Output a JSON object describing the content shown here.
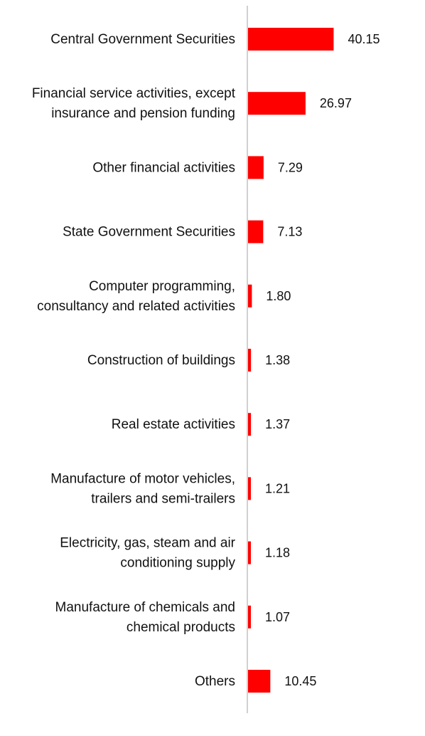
{
  "chart_data": {
    "type": "bar",
    "orientation": "horizontal",
    "title": "",
    "xlabel": "",
    "ylabel": "",
    "grid": false,
    "legend": "none",
    "bar_color": "#ff0000",
    "axis_color": "#d0d0d0",
    "categories": [
      [
        "Central Government Securities"
      ],
      [
        "Financial service activities, except",
        "insurance and pension funding"
      ],
      [
        "Other financial activities"
      ],
      [
        "State Government Securities"
      ],
      [
        "Computer programming,",
        "consultancy and related activities"
      ],
      [
        "Construction of buildings"
      ],
      [
        "Real estate activities"
      ],
      [
        "Manufacture of motor vehicles,",
        "trailers and semi-trailers"
      ],
      [
        "Electricity, gas, steam and air",
        "conditioning supply"
      ],
      [
        "Manufacture of chemicals and",
        "chemical products"
      ],
      [
        "Others"
      ]
    ],
    "values": [
      40.15,
      26.97,
      7.29,
      7.13,
      1.8,
      1.38,
      1.37,
      1.21,
      1.18,
      1.07,
      10.45
    ],
    "value_labels": [
      "40.15",
      "26.97",
      "7.29",
      "7.13",
      "1.80",
      "1.38",
      "1.37",
      "1.21",
      "1.18",
      "1.07",
      "10.45"
    ]
  }
}
